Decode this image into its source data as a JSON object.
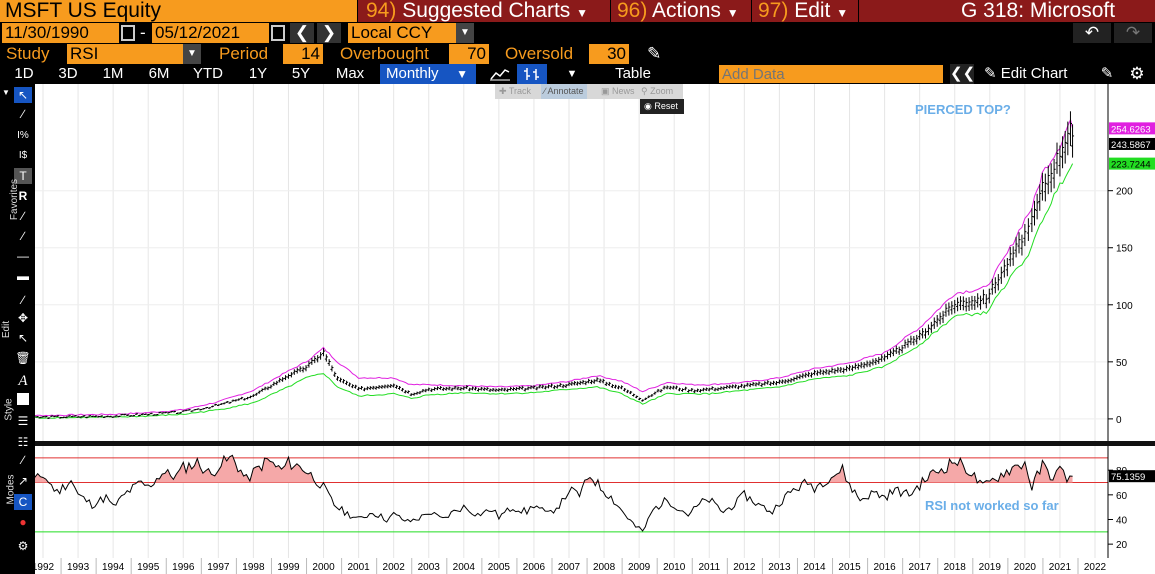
{
  "header": {
    "security": "MSFT US Equity",
    "suggested_num": "94)",
    "suggested_label": "Suggested Charts",
    "actions_num": "96)",
    "actions_label": "Actions",
    "edit_num": "97)",
    "edit_label": "Edit",
    "window_title": "G 318: Microsoft"
  },
  "dates": {
    "start": "11/30/1990",
    "dash": "-",
    "end": "05/12/2021",
    "currency": "Local CCY"
  },
  "study": {
    "label": "Study",
    "value": "RSI",
    "period_label": "Period",
    "period": "14",
    "overbought_label": "Overbought",
    "overbought": "70",
    "oversold_label": "Oversold",
    "oversold": "30"
  },
  "toolbar": {
    "ranges": [
      "1D",
      "3D",
      "1M",
      "6M",
      "YTD",
      "1Y",
      "5Y",
      "Max"
    ],
    "frequency": "Monthly",
    "table_label": "Table",
    "add_data_placeholder": "Add Data",
    "edit_chart_label": "Edit Chart"
  },
  "mini_toolbar": {
    "track": "Track",
    "annotate": "Annotate",
    "news": "News",
    "zoom": "Zoom",
    "reset": "Reset"
  },
  "side_labels": {
    "favorites": "Favorites",
    "edit": "Edit",
    "style": "Style",
    "modes": "Modes"
  },
  "chart_data": {
    "type": "line",
    "title": "",
    "x": [
      "1992",
      "1993",
      "1994",
      "1995",
      "1996",
      "1997",
      "1998",
      "1999",
      "2000",
      "2001",
      "2002",
      "2003",
      "2004",
      "2005",
      "2006",
      "2007",
      "2008",
      "2009",
      "2010",
      "2011",
      "2012",
      "2013",
      "2014",
      "2015",
      "2016",
      "2017",
      "2018",
      "2019",
      "2020",
      "2021",
      "2022"
    ],
    "price_axis": {
      "ticks": [
        0,
        50,
        100,
        150,
        200
      ],
      "ylim": [
        -15,
        290
      ]
    },
    "rsi_axis": {
      "ticks": [
        20,
        40,
        60,
        80
      ],
      "ylim": [
        12,
        98
      ]
    },
    "price_label_last": "243.5867",
    "upper_band_last": "254.6263",
    "lower_band_last": "223.7244",
    "rsi_last": "75.1359",
    "annotations": {
      "top": "PIERCED TOP?",
      "bottom": "RSI not worked so far"
    },
    "series": [
      {
        "name": "",
        "color": "#000000",
        "points": [
          [
            1990.9,
            1
          ],
          [
            1992,
            1.5
          ],
          [
            1993,
            2
          ],
          [
            1994,
            2.5
          ],
          [
            1995,
            4
          ],
          [
            1996,
            6
          ],
          [
            1997,
            12
          ],
          [
            1998,
            20
          ],
          [
            1999,
            38
          ],
          [
            1999.5,
            45
          ],
          [
            2000.0,
            58
          ],
          [
            2000.4,
            35
          ],
          [
            2001,
            26
          ],
          [
            2002,
            30
          ],
          [
            2002.5,
            22
          ],
          [
            2003,
            26
          ],
          [
            2004,
            27
          ],
          [
            2005,
            25
          ],
          [
            2006,
            27
          ],
          [
            2007,
            30
          ],
          [
            2007.8,
            34
          ],
          [
            2008.5,
            27
          ],
          [
            2009.1,
            17
          ],
          [
            2009.8,
            28
          ],
          [
            2010.5,
            25
          ],
          [
            2011,
            26
          ],
          [
            2012,
            29
          ],
          [
            2013,
            32
          ],
          [
            2014,
            40
          ],
          [
            2015,
            44
          ],
          [
            2016,
            53
          ],
          [
            2017,
            72
          ],
          [
            2018,
            100
          ],
          [
            2018.9,
            105
          ],
          [
            2019.5,
            135
          ],
          [
            2020,
            160
          ],
          [
            2020.2,
            170
          ],
          [
            2020.5,
            200
          ],
          [
            2021.0,
            230
          ],
          [
            2021.3,
            255
          ],
          [
            2021.36,
            243.6
          ]
        ]
      },
      {
        "name": "",
        "color": "#e020e0",
        "points": [
          [
            1990.9,
            2
          ],
          [
            1992,
            3
          ],
          [
            1993,
            3.5
          ],
          [
            1994,
            4
          ],
          [
            1995,
            5.5
          ],
          [
            1996,
            8
          ],
          [
            1997,
            15
          ],
          [
            1998,
            25
          ],
          [
            1999,
            42
          ],
          [
            1999.5,
            50
          ],
          [
            2000.0,
            62
          ],
          [
            2000.4,
            50
          ],
          [
            2001,
            36
          ],
          [
            2002,
            36
          ],
          [
            2002.5,
            30
          ],
          [
            2003,
            30
          ],
          [
            2004,
            29
          ],
          [
            2005,
            28
          ],
          [
            2006,
            29
          ],
          [
            2007,
            33
          ],
          [
            2007.8,
            38
          ],
          [
            2008.5,
            33
          ],
          [
            2009.1,
            24
          ],
          [
            2009.8,
            32
          ],
          [
            2010.5,
            30
          ],
          [
            2011,
            30
          ],
          [
            2012,
            32
          ],
          [
            2013,
            36
          ],
          [
            2014,
            44
          ],
          [
            2015,
            49
          ],
          [
            2016,
            58
          ],
          [
            2017,
            80
          ],
          [
            2018,
            110
          ],
          [
            2018.9,
            115
          ],
          [
            2019.5,
            145
          ],
          [
            2020,
            175
          ],
          [
            2020.2,
            185
          ],
          [
            2020.5,
            215
          ],
          [
            2021.0,
            240
          ],
          [
            2021.3,
            262
          ],
          [
            2021.36,
            254.6
          ]
        ]
      },
      {
        "name": "",
        "color": "#22dd22",
        "points": [
          [
            1990.9,
            0.5
          ],
          [
            1992,
            1
          ],
          [
            1993,
            1.2
          ],
          [
            1994,
            1.5
          ],
          [
            1995,
            2.5
          ],
          [
            1996,
            4
          ],
          [
            1997,
            8
          ],
          [
            1998,
            14
          ],
          [
            1999,
            28
          ],
          [
            1999.5,
            36
          ],
          [
            2000.0,
            40
          ],
          [
            2000.4,
            28
          ],
          [
            2001,
            20
          ],
          [
            2002,
            22
          ],
          [
            2002.5,
            18
          ],
          [
            2003,
            21
          ],
          [
            2004,
            23
          ],
          [
            2005,
            22
          ],
          [
            2006,
            23
          ],
          [
            2007,
            26
          ],
          [
            2007.8,
            28
          ],
          [
            2008.5,
            22
          ],
          [
            2009.1,
            13
          ],
          [
            2009.8,
            22
          ],
          [
            2010.5,
            22
          ],
          [
            2011,
            22
          ],
          [
            2012,
            25
          ],
          [
            2013,
            28
          ],
          [
            2014,
            35
          ],
          [
            2015,
            38
          ],
          [
            2016,
            46
          ],
          [
            2017,
            65
          ],
          [
            2018,
            90
          ],
          [
            2018.9,
            93
          ],
          [
            2019.5,
            120
          ],
          [
            2020,
            140
          ],
          [
            2020.2,
            150
          ],
          [
            2020.5,
            175
          ],
          [
            2021.0,
            205
          ],
          [
            2021.3,
            223
          ],
          [
            2021.36,
            223.7
          ]
        ]
      },
      {
        "name": "RSI",
        "color": "#000000",
        "points": [
          [
            1990.9,
            73
          ],
          [
            1991.3,
            82
          ],
          [
            1991.7,
            70
          ],
          [
            1992,
            76
          ],
          [
            1992.4,
            62
          ],
          [
            1992.8,
            72
          ],
          [
            1993,
            60
          ],
          [
            1993.4,
            52
          ],
          [
            1993.8,
            58
          ],
          [
            1994,
            50
          ],
          [
            1994.4,
            62
          ],
          [
            1994.8,
            70
          ],
          [
            1995,
            66
          ],
          [
            1995.4,
            78
          ],
          [
            1995.8,
            75
          ],
          [
            1996,
            82
          ],
          [
            1996.4,
            86
          ],
          [
            1996.8,
            76
          ],
          [
            1997,
            84
          ],
          [
            1997.4,
            90
          ],
          [
            1997.8,
            72
          ],
          [
            1998,
            78
          ],
          [
            1998.4,
            88
          ],
          [
            1998.8,
            80
          ],
          [
            1999,
            86
          ],
          [
            1999.4,
            82
          ],
          [
            1999.8,
            72
          ],
          [
            2000,
            66
          ],
          [
            2000.3,
            52
          ],
          [
            2000.6,
            46
          ],
          [
            2001,
            40
          ],
          [
            2001.4,
            46
          ],
          [
            2001.8,
            40
          ],
          [
            2002,
            44
          ],
          [
            2002.4,
            38
          ],
          [
            2002.8,
            42
          ],
          [
            2003,
            46
          ],
          [
            2003.4,
            40
          ],
          [
            2003.8,
            48
          ],
          [
            2004,
            50
          ],
          [
            2004.4,
            44
          ],
          [
            2004.8,
            48
          ],
          [
            2005,
            42
          ],
          [
            2005.4,
            50
          ],
          [
            2005.8,
            46
          ],
          [
            2006,
            52
          ],
          [
            2006.4,
            44
          ],
          [
            2006.8,
            54
          ],
          [
            2007,
            64
          ],
          [
            2007.3,
            60
          ],
          [
            2007.6,
            76
          ],
          [
            2007.9,
            66
          ],
          [
            2008.2,
            58
          ],
          [
            2008.6,
            44
          ],
          [
            2008.9,
            34
          ],
          [
            2009.1,
            30
          ],
          [
            2009.4,
            48
          ],
          [
            2009.8,
            56
          ],
          [
            2010,
            52
          ],
          [
            2010.4,
            44
          ],
          [
            2010.8,
            54
          ],
          [
            2011,
            56
          ],
          [
            2011.4,
            46
          ],
          [
            2011.8,
            54
          ],
          [
            2012,
            60
          ],
          [
            2012.4,
            52
          ],
          [
            2012.8,
            46
          ],
          [
            2013,
            54
          ],
          [
            2013.4,
            64
          ],
          [
            2013.8,
            70
          ],
          [
            2014,
            66
          ],
          [
            2014.4,
            74
          ],
          [
            2014.8,
            80
          ],
          [
            2015,
            68
          ],
          [
            2015.3,
            56
          ],
          [
            2015.7,
            62
          ],
          [
            2016,
            58
          ],
          [
            2016.3,
            64
          ],
          [
            2016.7,
            60
          ],
          [
            2017,
            68
          ],
          [
            2017.3,
            76
          ],
          [
            2017.7,
            82
          ],
          [
            2018,
            88
          ],
          [
            2018.4,
            80
          ],
          [
            2018.8,
            66
          ],
          [
            2019,
            70
          ],
          [
            2019.4,
            78
          ],
          [
            2019.8,
            84
          ],
          [
            2020,
            86
          ],
          [
            2020.2,
            66
          ],
          [
            2020.5,
            84
          ],
          [
            2020.8,
            74
          ],
          [
            2021.0,
            80
          ],
          [
            2021.2,
            74
          ],
          [
            2021.36,
            75.1
          ]
        ]
      }
    ],
    "levels": [
      {
        "name": "Overbought",
        "value": 70,
        "color": "#e03030"
      },
      {
        "name": "Oversold",
        "value": 30,
        "color": "#22dd22"
      },
      {
        "name": "",
        "value": 90,
        "color": "#e03030"
      }
    ]
  }
}
